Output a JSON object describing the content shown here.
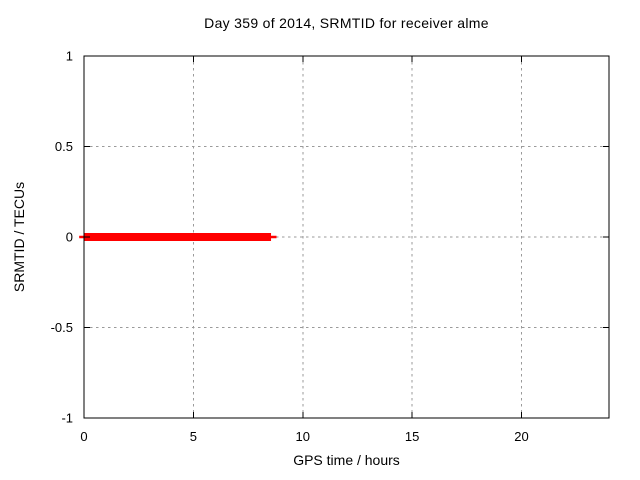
{
  "chart_data": {
    "type": "line",
    "title": "Day 359 of 2014, SRMTID for receiver alme",
    "xlabel": "GPS time / hours",
    "ylabel": "SRMTID / TECUs",
    "xlim": [
      0,
      24
    ],
    "ylim": [
      -1,
      1
    ],
    "xticks": [
      0,
      5,
      10,
      15,
      20
    ],
    "xtick_labels": [
      "0",
      "5",
      "10",
      "15",
      "20"
    ],
    "yticks": [
      1,
      0.5,
      0,
      -0.5,
      -1
    ],
    "ytick_labels": [
      "1",
      "0.5",
      "0",
      "-0.5",
      "-1"
    ],
    "grid": true,
    "grid_style": "dashed",
    "grid_color": "#9a9a9a",
    "border_color": "#000000",
    "background_color": "#ffffff",
    "legend": "none",
    "series": [
      {
        "name": "SRMTID thin underlay",
        "color": "#ff0000",
        "linewidth": 2.5,
        "points": [
          [
            -0.22,
            0
          ],
          [
            8.8,
            0
          ]
        ]
      },
      {
        "name": "SRMTID",
        "color": "#ff0000",
        "linewidth": 8,
        "points": [
          [
            0,
            0
          ],
          [
            8.55,
            0
          ]
        ]
      }
    ]
  }
}
